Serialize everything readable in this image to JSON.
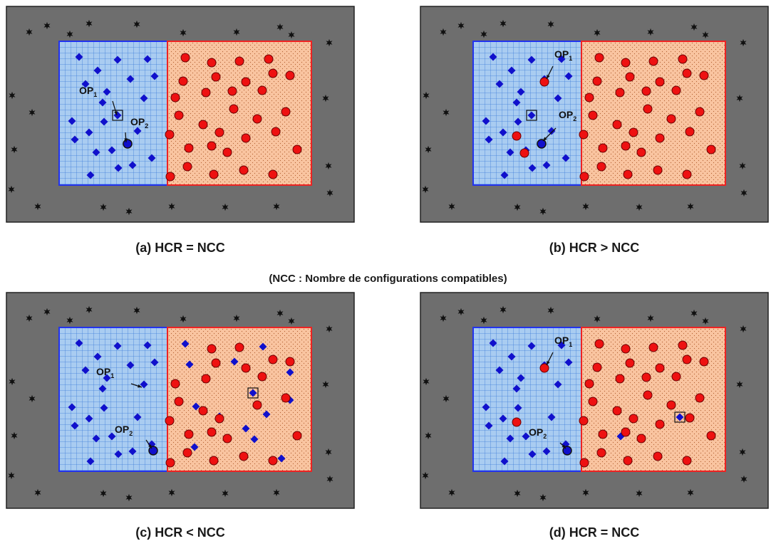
{
  "colors": {
    "background": "#6e6e6e",
    "blue_fill": "#a9ccf1",
    "blue_grid": "#3d7bd8",
    "blue_border": "#2233ee",
    "red_fill": "#f9c4a0",
    "red_border": "#ee2222",
    "diamond": "#1010cc",
    "circle": "#ee1111",
    "star": "#111111"
  },
  "note": "(NCC : Nombre de configurations compatibles)",
  "panels": [
    {
      "caption": "(a) HCR = NCC",
      "diamonds_blue": [
        [
          28,
          22
        ],
        [
          82,
          26
        ],
        [
          124,
          25
        ],
        [
          54,
          41
        ],
        [
          37,
          60
        ],
        [
          67,
          71
        ],
        [
          100,
          53
        ],
        [
          134,
          49
        ],
        [
          61,
          86
        ],
        [
          119,
          80
        ],
        [
          18,
          112
        ],
        [
          63,
          113
        ],
        [
          42,
          128
        ],
        [
          22,
          138
        ],
        [
          110,
          126
        ],
        [
          52,
          156
        ],
        [
          130,
          164
        ],
        [
          103,
          174
        ],
        [
          74,
          153
        ],
        [
          83,
          178
        ],
        [
          44,
          188
        ]
      ],
      "circles_red": [
        [
          177,
          23
        ],
        [
          214,
          30
        ],
        [
          253,
          28
        ],
        [
          294,
          25
        ],
        [
          174,
          56
        ],
        [
          220,
          50
        ],
        [
          262,
          57
        ],
        [
          300,
          45
        ],
        [
          163,
          79
        ],
        [
          206,
          72
        ],
        [
          243,
          70
        ],
        [
          285,
          69
        ],
        [
          324,
          48
        ],
        [
          318,
          99
        ],
        [
          202,
          117
        ],
        [
          245,
          95
        ],
        [
          168,
          104
        ],
        [
          278,
          109
        ],
        [
          155,
          131
        ],
        [
          182,
          150
        ],
        [
          225,
          128
        ],
        [
          262,
          136
        ],
        [
          304,
          127
        ],
        [
          214,
          147
        ],
        [
          236,
          156
        ],
        [
          180,
          176
        ],
        [
          156,
          190
        ],
        [
          217,
          187
        ],
        [
          259,
          181
        ],
        [
          300,
          187
        ],
        [
          334,
          152
        ]
      ],
      "circles_red_in_blue": [],
      "diamonds_in_red": [],
      "op_circles": [
        [
          96,
          144
        ]
      ],
      "boxed_diamonds": [
        [
          82,
          104
        ]
      ],
      "stars": [
        [
          33,
          37
        ],
        [
          58,
          28
        ],
        [
          90,
          40
        ],
        [
          117,
          25
        ],
        [
          184,
          26
        ],
        [
          249,
          38
        ],
        [
          324,
          37
        ],
        [
          385,
          30
        ],
        [
          401,
          41
        ],
        [
          454,
          52
        ],
        [
          9,
          126
        ],
        [
          37,
          150
        ],
        [
          12,
          202
        ],
        [
          8,
          258
        ],
        [
          45,
          282
        ],
        [
          137,
          283
        ],
        [
          173,
          289
        ],
        [
          233,
          282
        ],
        [
          308,
          283
        ],
        [
          380,
          282
        ],
        [
          455,
          263
        ],
        [
          453,
          225
        ],
        [
          449,
          130
        ]
      ],
      "labels": [
        {
          "text": "OP",
          "sub": "1",
          "pos": [
            28,
            74
          ]
        },
        {
          "text": "OP",
          "sub": "2",
          "pos": [
            100,
            118
          ]
        }
      ],
      "arrows": [
        [
          75,
          84,
          81,
          104
        ],
        [
          93,
          128,
          94,
          142
        ]
      ]
    },
    {
      "caption": "(b) HCR > NCC",
      "diamonds_blue": [
        [
          28,
          22
        ],
        [
          82,
          26
        ],
        [
          124,
          25
        ],
        [
          54,
          41
        ],
        [
          37,
          60
        ],
        [
          67,
          71
        ],
        [
          100,
          53
        ],
        [
          134,
          49
        ],
        [
          61,
          86
        ],
        [
          119,
          80
        ],
        [
          18,
          112
        ],
        [
          63,
          113
        ],
        [
          42,
          128
        ],
        [
          22,
          138
        ],
        [
          110,
          126
        ],
        [
          52,
          156
        ],
        [
          130,
          164
        ],
        [
          103,
          174
        ],
        [
          74,
          153
        ],
        [
          83,
          178
        ],
        [
          44,
          188
        ]
      ],
      "circles_red": [
        [
          177,
          23
        ],
        [
          214,
          30
        ],
        [
          253,
          28
        ],
        [
          294,
          25
        ],
        [
          174,
          56
        ],
        [
          220,
          50
        ],
        [
          262,
          57
        ],
        [
          300,
          45
        ],
        [
          163,
          79
        ],
        [
          206,
          72
        ],
        [
          243,
          70
        ],
        [
          285,
          69
        ],
        [
          324,
          48
        ],
        [
          318,
          99
        ],
        [
          202,
          117
        ],
        [
          245,
          95
        ],
        [
          168,
          104
        ],
        [
          278,
          109
        ],
        [
          155,
          131
        ],
        [
          182,
          150
        ],
        [
          225,
          128
        ],
        [
          262,
          136
        ],
        [
          304,
          127
        ],
        [
          214,
          147
        ],
        [
          236,
          156
        ],
        [
          180,
          176
        ],
        [
          156,
          190
        ],
        [
          217,
          187
        ],
        [
          259,
          181
        ],
        [
          300,
          187
        ],
        [
          334,
          152
        ]
      ],
      "circles_red_in_blue": [
        [
          100,
          57
        ],
        [
          61,
          133
        ],
        [
          72,
          157
        ]
      ],
      "diamonds_in_red": [],
      "op_circles": [
        [
          96,
          144
        ]
      ],
      "boxed_diamonds": [
        [
          82,
          104
        ]
      ],
      "stars": [
        [
          33,
          37
        ],
        [
          58,
          28
        ],
        [
          90,
          40
        ],
        [
          117,
          25
        ],
        [
          184,
          26
        ],
        [
          249,
          38
        ],
        [
          324,
          37
        ],
        [
          385,
          30
        ],
        [
          401,
          41
        ],
        [
          454,
          52
        ],
        [
          9,
          126
        ],
        [
          37,
          150
        ],
        [
          12,
          202
        ],
        [
          8,
          258
        ],
        [
          45,
          282
        ],
        [
          137,
          283
        ],
        [
          173,
          289
        ],
        [
          233,
          282
        ],
        [
          308,
          283
        ],
        [
          380,
          282
        ],
        [
          455,
          263
        ],
        [
          453,
          225
        ],
        [
          449,
          130
        ]
      ],
      "labels": [
        {
          "text": "OP",
          "sub": "1",
          "pos": [
            114,
            23
          ]
        },
        {
          "text": "OP",
          "sub": "2",
          "pos": [
            120,
            108
          ]
        }
      ],
      "arrows": [
        [
          112,
          35,
          103,
          53
        ],
        [
          116,
          122,
          98,
          140
        ]
      ]
    },
    {
      "caption": "(c) HCR < NCC",
      "diamonds_blue": [
        [
          28,
          22
        ],
        [
          82,
          26
        ],
        [
          124,
          25
        ],
        [
          54,
          41
        ],
        [
          37,
          60
        ],
        [
          67,
          71
        ],
        [
          100,
          53
        ],
        [
          134,
          49
        ],
        [
          61,
          86
        ],
        [
          119,
          80
        ],
        [
          18,
          112
        ],
        [
          63,
          113
        ],
        [
          42,
          128
        ],
        [
          22,
          138
        ],
        [
          110,
          126
        ],
        [
          52,
          156
        ],
        [
          130,
          164
        ],
        [
          103,
          174
        ],
        [
          74,
          153
        ],
        [
          83,
          178
        ],
        [
          44,
          188
        ]
      ],
      "circles_red": [
        [
          214,
          30
        ],
        [
          253,
          28
        ],
        [
          220,
          50
        ],
        [
          262,
          57
        ],
        [
          300,
          45
        ],
        [
          163,
          79
        ],
        [
          206,
          72
        ],
        [
          285,
          69
        ],
        [
          324,
          48
        ],
        [
          318,
          99
        ],
        [
          202,
          117
        ],
        [
          168,
          104
        ],
        [
          278,
          109
        ],
        [
          155,
          131
        ],
        [
          182,
          150
        ],
        [
          225,
          128
        ],
        [
          214,
          147
        ],
        [
          236,
          156
        ],
        [
          180,
          176
        ],
        [
          156,
          190
        ],
        [
          217,
          187
        ],
        [
          259,
          181
        ],
        [
          300,
          187
        ],
        [
          334,
          152
        ]
      ],
      "circles_red_in_blue": [],
      "diamonds_in_red": [
        [
          177,
          23
        ],
        [
          286,
          27
        ],
        [
          183,
          52
        ],
        [
          246,
          48
        ],
        [
          324,
          63
        ],
        [
          324,
          102
        ],
        [
          192,
          111
        ],
        [
          291,
          122
        ],
        [
          225,
          125
        ],
        [
          190,
          168
        ],
        [
          262,
          142
        ],
        [
          274,
          157
        ],
        [
          312,
          184
        ]
      ],
      "op_circles": [
        [
          132,
          173
        ]
      ],
      "boxed_diamonds": [
        [
          272,
          92
        ]
      ],
      "stars": [
        [
          33,
          37
        ],
        [
          58,
          28
        ],
        [
          90,
          40
        ],
        [
          117,
          25
        ],
        [
          184,
          26
        ],
        [
          249,
          38
        ],
        [
          324,
          37
        ],
        [
          385,
          30
        ],
        [
          401,
          41
        ],
        [
          454,
          52
        ],
        [
          9,
          126
        ],
        [
          37,
          150
        ],
        [
          12,
          202
        ],
        [
          8,
          258
        ],
        [
          45,
          282
        ],
        [
          137,
          283
        ],
        [
          173,
          289
        ],
        [
          233,
          282
        ],
        [
          308,
          283
        ],
        [
          380,
          282
        ],
        [
          455,
          263
        ],
        [
          453,
          225
        ],
        [
          449,
          130
        ]
      ],
      "labels": [
        {
          "text": "OP",
          "sub": "1",
          "pos": [
            52,
            67
          ]
        },
        {
          "text": "OP",
          "sub": "2",
          "pos": [
            78,
            148
          ]
        }
      ],
      "arrows": [
        [
          101,
          79,
          116,
          84
        ],
        [
          122,
          158,
          130,
          170
        ]
      ]
    },
    {
      "caption": "(d) HCR = NCC",
      "diamonds_blue": [
        [
          28,
          22
        ],
        [
          82,
          26
        ],
        [
          124,
          25
        ],
        [
          54,
          41
        ],
        [
          37,
          60
        ],
        [
          67,
          71
        ],
        [
          100,
          53
        ],
        [
          134,
          49
        ],
        [
          61,
          86
        ],
        [
          119,
          80
        ],
        [
          18,
          112
        ],
        [
          63,
          113
        ],
        [
          42,
          128
        ],
        [
          22,
          138
        ],
        [
          110,
          126
        ],
        [
          52,
          156
        ],
        [
          130,
          164
        ],
        [
          103,
          174
        ],
        [
          74,
          153
        ],
        [
          83,
          178
        ],
        [
          44,
          188
        ]
      ],
      "circles_red": [
        [
          177,
          23
        ],
        [
          214,
          30
        ],
        [
          253,
          28
        ],
        [
          294,
          25
        ],
        [
          174,
          56
        ],
        [
          220,
          50
        ],
        [
          262,
          57
        ],
        [
          300,
          45
        ],
        [
          163,
          79
        ],
        [
          206,
          72
        ],
        [
          243,
          70
        ],
        [
          285,
          69
        ],
        [
          324,
          48
        ],
        [
          318,
          99
        ],
        [
          202,
          117
        ],
        [
          245,
          95
        ],
        [
          168,
          104
        ],
        [
          278,
          109
        ],
        [
          155,
          131
        ],
        [
          182,
          150
        ],
        [
          225,
          128
        ],
        [
          262,
          136
        ],
        [
          304,
          127
        ],
        [
          214,
          147
        ],
        [
          236,
          156
        ],
        [
          180,
          176
        ],
        [
          156,
          190
        ],
        [
          217,
          187
        ],
        [
          259,
          181
        ],
        [
          300,
          187
        ],
        [
          334,
          152
        ]
      ],
      "circles_red_in_blue": [
        [
          100,
          57
        ],
        [
          61,
          133
        ]
      ],
      "diamonds_in_red": [
        [
          207,
          153
        ]
      ],
      "op_circles": [
        [
          132,
          173
        ]
      ],
      "boxed_diamonds": [
        [
          290,
          126
        ]
      ],
      "stars": [
        [
          33,
          37
        ],
        [
          58,
          28
        ],
        [
          90,
          40
        ],
        [
          117,
          25
        ],
        [
          184,
          26
        ],
        [
          249,
          38
        ],
        [
          324,
          37
        ],
        [
          385,
          30
        ],
        [
          401,
          41
        ],
        [
          454,
          52
        ],
        [
          9,
          126
        ],
        [
          37,
          150
        ],
        [
          12,
          202
        ],
        [
          8,
          258
        ],
        [
          45,
          282
        ],
        [
          137,
          283
        ],
        [
          173,
          289
        ],
        [
          233,
          282
        ],
        [
          308,
          283
        ],
        [
          380,
          282
        ],
        [
          455,
          263
        ],
        [
          453,
          225
        ],
        [
          449,
          130
        ]
      ],
      "labels": [
        {
          "text": "OP",
          "sub": "1",
          "pos": [
            114,
            23
          ]
        },
        {
          "text": "OP",
          "sub": "2",
          "pos": [
            78,
            152
          ]
        }
      ],
      "arrows": [
        [
          112,
          35,
          103,
          53
        ],
        [
          122,
          162,
          130,
          170
        ]
      ]
    }
  ]
}
